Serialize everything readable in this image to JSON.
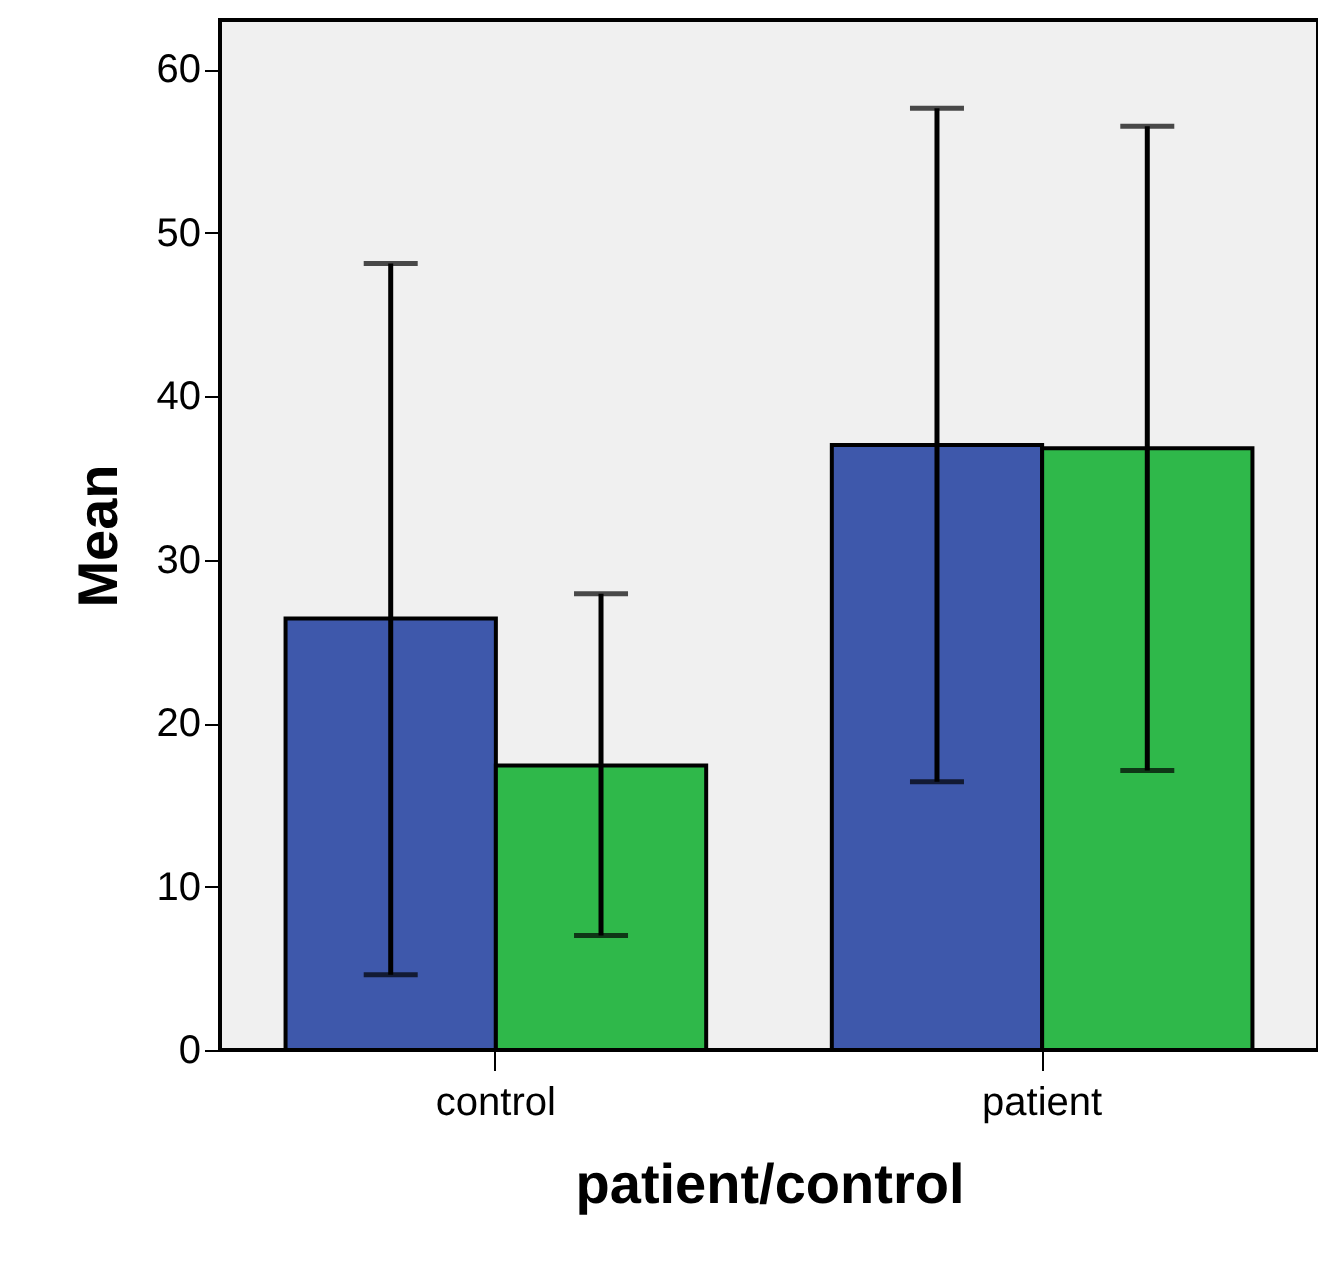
{
  "chart_data": {
    "type": "bar",
    "xlabel": "patient/control",
    "ylabel": "Mean",
    "categories": [
      "control",
      "patient"
    ],
    "series": [
      {
        "color": "#3e58ab",
        "values": [
          26.4,
          37.0
        ],
        "errors": [
          [
            4.6,
            48.1
          ],
          [
            16.4,
            57.6
          ]
        ]
      },
      {
        "color": "#2fb84a",
        "values": [
          17.4,
          36.8
        ],
        "errors": [
          [
            7.0,
            27.9
          ],
          [
            17.1,
            56.5
          ]
        ]
      }
    ],
    "ylim": [
      0,
      63
    ],
    "yticks": [
      0,
      10,
      20,
      30,
      40,
      50,
      60
    ],
    "grid": false
  }
}
